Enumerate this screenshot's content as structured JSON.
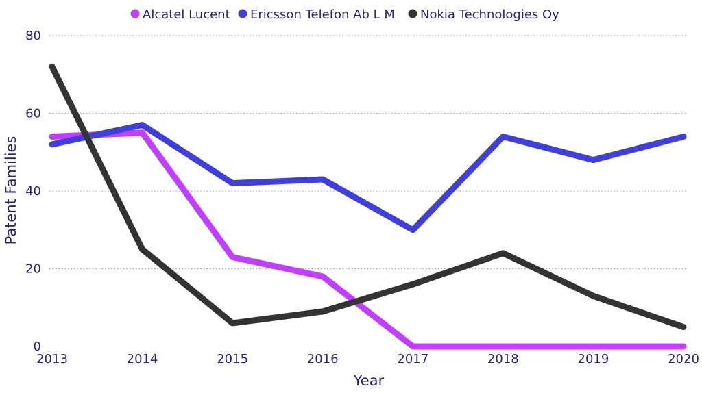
{
  "chart_data": {
    "type": "line",
    "title": "",
    "xlabel": "Year",
    "ylabel": "Patent Families",
    "x": [
      "2013",
      "2014",
      "2015",
      "2016",
      "2017",
      "2018",
      "2019",
      "2020"
    ],
    "ylim": [
      0,
      80
    ],
    "yticks": [
      "0",
      "20",
      "40",
      "60",
      "80"
    ],
    "grid": true,
    "legend_position": "top-center",
    "series": [
      {
        "name": "Alcatel Lucent",
        "color": "#bf40ff",
        "values": [
          54,
          55,
          23,
          18,
          0,
          0,
          0,
          0
        ]
      },
      {
        "name": "Ericsson Telefon Ab L M",
        "color": "#4040d8",
        "values": [
          52,
          57,
          42,
          43,
          30,
          54,
          48,
          54
        ]
      },
      {
        "name": "Nokia Technologies Oy",
        "color": "#333333",
        "values": [
          72,
          25,
          6,
          9,
          16,
          24,
          13,
          5
        ]
      }
    ]
  }
}
